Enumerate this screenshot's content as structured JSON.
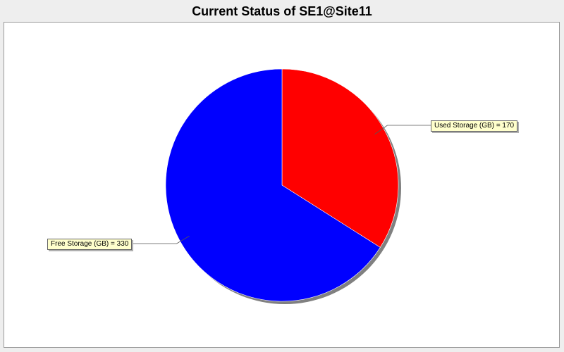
{
  "chart_data": {
    "type": "pie",
    "title": "Current Status of SE1@Site11",
    "slices": [
      {
        "label": "Used Storage (GB)",
        "value": 170,
        "color": "#ff0000",
        "label_text": "Used Storage (GB) = 170"
      },
      {
        "label": "Free Storage (GB)",
        "value": 330,
        "color": "#0000ff",
        "label_text": "Free Storage (GB) = 330"
      }
    ],
    "start_angle": "12 o'clock",
    "direction": "clockwise",
    "shadow": true,
    "legend": "none"
  }
}
